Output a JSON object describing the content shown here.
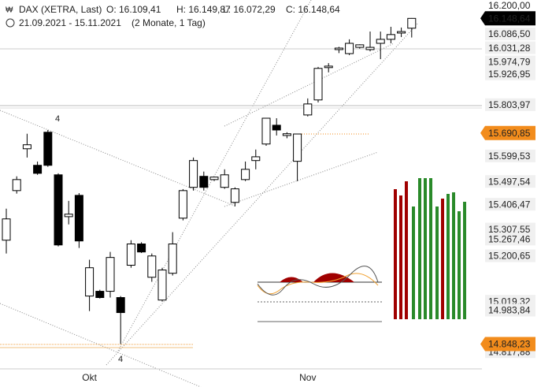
{
  "header": {
    "icon": "₩",
    "instrument": "DAX (XETRA, Last)",
    "open": "O: 16.109,41",
    "high": "H: 16.149,87",
    "low": "L: 16.072,29",
    "close": "C: 16.148,64",
    "range": "21.09.2021 - 15.11.2021",
    "span": "(2 Monate, 1 Tag)"
  },
  "chart_data": {
    "type": "candlestick",
    "categories": [
      null,
      null,
      null,
      null,
      null,
      null,
      null,
      null,
      "Okt",
      null,
      null,
      null,
      null,
      null,
      null,
      null,
      null,
      null,
      null,
      null,
      null,
      null,
      null,
      null,
      null,
      null,
      null,
      null,
      null,
      "Nov",
      null,
      null,
      null,
      null,
      null,
      null,
      null,
      null,
      null,
      null
    ],
    "open": [
      15263,
      15461,
      15628,
      15562,
      15694,
      15524,
      15357,
      15442,
      15040,
      15059,
      15059,
      15034,
      15163,
      15248,
      15115,
      15024,
      15131,
      15351,
      15474,
      15518,
      15505,
      15474,
      15414,
      15505,
      15581,
      15647,
      15722,
      15681,
      15578,
      15763,
      15823,
      15952,
      16024,
      16008,
      16033,
      16024,
      16049,
      16065,
      16090,
      16109.41
    ],
    "high": [
      15389,
      15518,
      15688,
      15577,
      15703,
      15530,
      15420,
      15451,
      15185,
      15065,
      15216,
      15040,
      15263,
      15255,
      15210,
      15153,
      15295,
      15467,
      15593,
      15537,
      15515,
      15546,
      15474,
      15577,
      15625,
      15750,
      15750,
      15694,
      15688,
      15829,
      15955,
      15970,
      16035,
      16065,
      16045,
      16096,
      16096,
      16115,
      16112,
      16149.87
    ],
    "low": [
      15210,
      15449,
      15593,
      15524,
      15556,
      15238,
      15326,
      15232,
      14980,
      15030,
      15034,
      14848.23,
      15153,
      15212,
      15097,
      15018,
      15122,
      15342,
      15461,
      15461,
      15499,
      15468,
      15398,
      15499,
      15546,
      15640,
      15681,
      15670,
      15499,
      15757,
      15813,
      15933,
      16010,
      16002,
      16028,
      16017,
      15986,
      16049,
      16074,
      16072.29
    ],
    "close": [
      15348,
      15505,
      15644,
      15530,
      15562,
      15244,
      15367,
      15260,
      15153,
      15034,
      15194,
      14974,
      15248,
      15216,
      15200,
      15144,
      15248,
      15461,
      15581,
      15474,
      15515,
      15524,
      15468,
      15546,
      15596,
      15750,
      15703,
      15688,
      15687,
      15807,
      15949,
      15958,
      16030,
      16049,
      16043,
      16033,
      16065,
      16084,
      16096,
      16148.64
    ],
    "up_color": "#ffffff",
    "down_color": "#000000",
    "ylim": [
      14680,
      16222
    ],
    "yticks": [
      {
        "value": 16200,
        "label": "16.200,00"
      },
      {
        "value": 16086.5,
        "label": "16.086,50"
      },
      {
        "value": 16031.28,
        "label": "16.031,28"
      },
      {
        "value": 15974.79,
        "label": "15.974,79"
      },
      {
        "value": 15926.95,
        "label": "15.926,95"
      },
      {
        "value": 15803.97,
        "label": "15.803,97"
      },
      {
        "value": 15599.53,
        "label": "15.599,53"
      },
      {
        "value": 15497.54,
        "label": "15.497,54"
      },
      {
        "value": 15406.47,
        "label": "15.406,47"
      },
      {
        "value": 15307.55,
        "label": "15.307,55"
      },
      {
        "value": 15267.46,
        "label": "15.267,46"
      },
      {
        "value": 15200.65,
        "label": "15.200,65"
      },
      {
        "value": 15019.32,
        "label": "15.019,32"
      },
      {
        "value": 14983.84,
        "label": "14.983,84"
      },
      {
        "value": 14817.88,
        "label": "14.817,88"
      }
    ],
    "markers": [
      {
        "value": 16148.64,
        "label": "16.148,64",
        "color": "#000000"
      },
      {
        "value": 15690.85,
        "label": "15.690,85",
        "color": "#f28c1c"
      },
      {
        "value": 14848.23,
        "label": "14.848,23",
        "color": "#f28c1c"
      }
    ],
    "annotations": [
      {
        "text": "4",
        "color": "#2222cc"
      },
      {
        "text": "4",
        "color": "#cc22aa"
      }
    ]
  }
}
